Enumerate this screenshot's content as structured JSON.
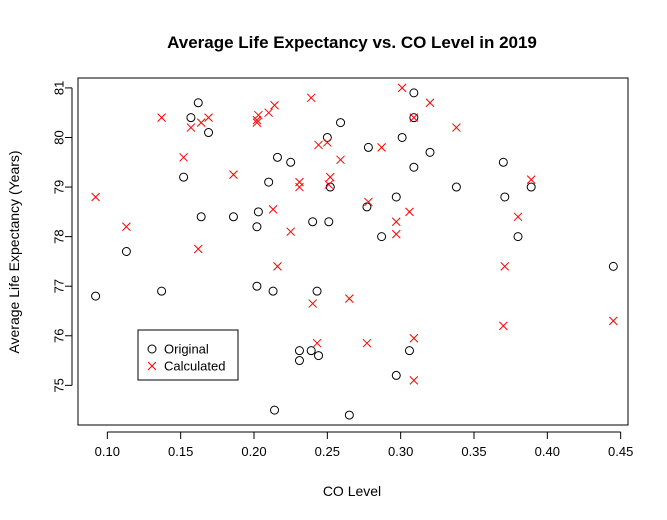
{
  "chart_data": {
    "type": "scatter",
    "title": "Average Life Expectancy vs. CO Level in 2019",
    "xlabel": "CO Level",
    "ylabel": "Average Life Expectancy (Years)",
    "xlim": [
      0.08,
      0.455
    ],
    "ylim": [
      74.2,
      81.2
    ],
    "xticks": [
      0.1,
      0.15,
      0.2,
      0.25,
      0.3,
      0.35,
      0.4,
      0.45
    ],
    "xtick_labels": [
      "0.10",
      "0.15",
      "0.20",
      "0.25",
      "0.30",
      "0.35",
      "0.40",
      "0.45"
    ],
    "yticks": [
      75,
      76,
      77,
      78,
      79,
      80,
      81
    ],
    "ytick_labels": [
      "75",
      "76",
      "77",
      "78",
      "79",
      "80",
      "81"
    ],
    "grid": false,
    "legend_position": "bottom-left",
    "series": [
      {
        "name": "Original",
        "marker": "circle",
        "color": "#000000",
        "points": [
          [
            0.092,
            76.8
          ],
          [
            0.113,
            77.7
          ],
          [
            0.137,
            76.9
          ],
          [
            0.152,
            79.2
          ],
          [
            0.157,
            80.4
          ],
          [
            0.162,
            80.7
          ],
          [
            0.164,
            78.4
          ],
          [
            0.169,
            80.1
          ],
          [
            0.186,
            78.4
          ],
          [
            0.202,
            78.2
          ],
          [
            0.202,
            77.0
          ],
          [
            0.203,
            78.5
          ],
          [
            0.21,
            79.1
          ],
          [
            0.213,
            76.9
          ],
          [
            0.214,
            74.5
          ],
          [
            0.216,
            79.6
          ],
          [
            0.225,
            79.5
          ],
          [
            0.231,
            75.7
          ],
          [
            0.231,
            75.5
          ],
          [
            0.239,
            75.7
          ],
          [
            0.24,
            78.3
          ],
          [
            0.243,
            76.9
          ],
          [
            0.244,
            75.6
          ],
          [
            0.25,
            80.0
          ],
          [
            0.251,
            78.3
          ],
          [
            0.252,
            79.0
          ],
          [
            0.259,
            80.3
          ],
          [
            0.265,
            74.4
          ],
          [
            0.277,
            78.6
          ],
          [
            0.278,
            79.8
          ],
          [
            0.287,
            78.0
          ],
          [
            0.297,
            78.8
          ],
          [
            0.297,
            75.2
          ],
          [
            0.301,
            80.0
          ],
          [
            0.306,
            75.7
          ],
          [
            0.309,
            80.4
          ],
          [
            0.309,
            80.9
          ],
          [
            0.309,
            79.4
          ],
          [
            0.32,
            79.7
          ],
          [
            0.338,
            79.0
          ],
          [
            0.37,
            79.5
          ],
          [
            0.371,
            78.8
          ],
          [
            0.38,
            78.0
          ],
          [
            0.389,
            79.0
          ],
          [
            0.445,
            77.4
          ]
        ]
      },
      {
        "name": "Calculated",
        "marker": "x",
        "color": "#ff0000",
        "points": [
          [
            0.092,
            78.8
          ],
          [
            0.113,
            78.2
          ],
          [
            0.137,
            80.4
          ],
          [
            0.152,
            79.6
          ],
          [
            0.157,
            80.2
          ],
          [
            0.162,
            77.75
          ],
          [
            0.164,
            80.3
          ],
          [
            0.169,
            80.4
          ],
          [
            0.186,
            79.25
          ],
          [
            0.202,
            80.3
          ],
          [
            0.202,
            80.35
          ],
          [
            0.203,
            80.45
          ],
          [
            0.21,
            80.5
          ],
          [
            0.213,
            78.55
          ],
          [
            0.214,
            80.65
          ],
          [
            0.216,
            77.4
          ],
          [
            0.225,
            78.1
          ],
          [
            0.231,
            79.0
          ],
          [
            0.231,
            79.1
          ],
          [
            0.239,
            80.8
          ],
          [
            0.24,
            76.65
          ],
          [
            0.243,
            75.85
          ],
          [
            0.244,
            79.85
          ],
          [
            0.25,
            79.9
          ],
          [
            0.251,
            79.05
          ],
          [
            0.252,
            79.2
          ],
          [
            0.259,
            79.55
          ],
          [
            0.265,
            76.75
          ],
          [
            0.277,
            75.85
          ],
          [
            0.278,
            78.7
          ],
          [
            0.287,
            79.8
          ],
          [
            0.297,
            78.3
          ],
          [
            0.297,
            78.05
          ],
          [
            0.301,
            81.0
          ],
          [
            0.306,
            78.5
          ],
          [
            0.309,
            80.4
          ],
          [
            0.309,
            75.1
          ],
          [
            0.309,
            75.95
          ],
          [
            0.32,
            80.7
          ],
          [
            0.338,
            80.2
          ],
          [
            0.37,
            76.2
          ],
          [
            0.371,
            77.4
          ],
          [
            0.38,
            78.4
          ],
          [
            0.389,
            79.15
          ],
          [
            0.445,
            76.3
          ]
        ]
      }
    ]
  }
}
